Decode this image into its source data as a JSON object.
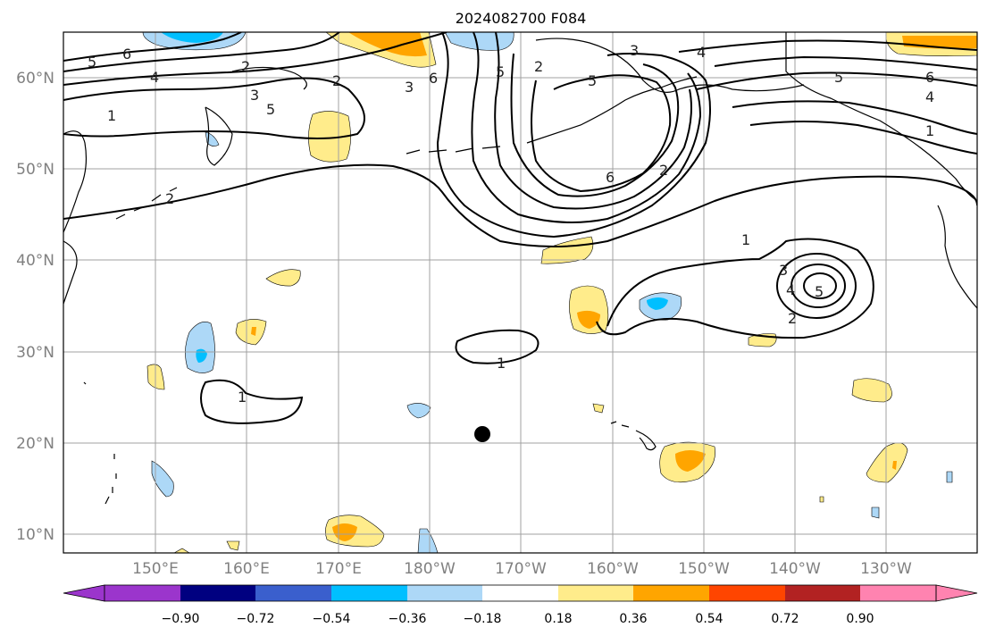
{
  "title": "2024082700 F084",
  "map": {
    "lat_labels": [
      "60°N",
      "50°N",
      "40°N",
      "30°N",
      "20°N",
      "10°N"
    ],
    "lon_labels": [
      "150°E",
      "160°E",
      "170°E",
      "180°W",
      "170°W",
      "160°W",
      "150°W",
      "140°W",
      "130°W"
    ],
    "contour_labels": [
      "1",
      "2",
      "3",
      "4",
      "5",
      "6"
    ],
    "marker": "storm position",
    "colorbar": {
      "ticks": [
        "−0.90",
        "−0.72",
        "−0.54",
        "−0.36",
        "−0.18",
        "0.18",
        "0.36",
        "0.54",
        "0.72",
        "0.90"
      ],
      "colors": [
        "#9b35cc",
        "#000080",
        "#3a5fcd",
        "#00bfff",
        "#add8f7",
        "#ffffff",
        "#ffec8b",
        "#ffa500",
        "#ff4500",
        "#b22222",
        "#ff83b0"
      ]
    }
  }
}
